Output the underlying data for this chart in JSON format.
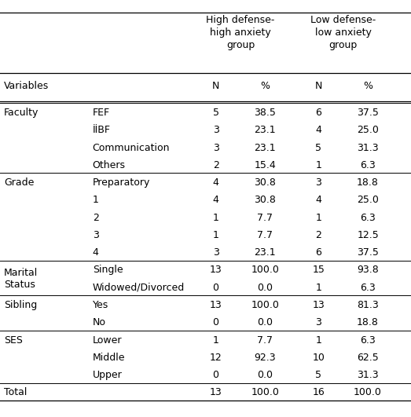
{
  "col_headers": [
    "N",
    "%",
    "N",
    "%"
  ],
  "var_header": "Variables",
  "rows": [
    {
      "var": "Faculty",
      "sub": "FEF",
      "n1": "5",
      "p1": "38.5",
      "n2": "6",
      "p2": "37.5"
    },
    {
      "var": "",
      "sub": "İİBF",
      "n1": "3",
      "p1": "23.1",
      "n2": "4",
      "p2": "25.0"
    },
    {
      "var": "",
      "sub": "Communication",
      "n1": "3",
      "p1": "23.1",
      "n2": "5",
      "p2": "31.3"
    },
    {
      "var": "",
      "sub": "Others",
      "n1": "2",
      "p1": "15.4",
      "n2": "1",
      "p2": "6.3"
    },
    {
      "var": "Grade",
      "sub": "Preparatory",
      "n1": "4",
      "p1": "30.8",
      "n2": "3",
      "p2": "18.8"
    },
    {
      "var": "",
      "sub": "1",
      "n1": "4",
      "p1": "30.8",
      "n2": "4",
      "p2": "25.0"
    },
    {
      "var": "",
      "sub": "2",
      "n1": "1",
      "p1": "7.7",
      "n2": "1",
      "p2": "6.3"
    },
    {
      "var": "",
      "sub": "3",
      "n1": "1",
      "p1": "7.7",
      "n2": "2",
      "p2": "12.5"
    },
    {
      "var": "",
      "sub": "4",
      "n1": "3",
      "p1": "23.1",
      "n2": "6",
      "p2": "37.5"
    },
    {
      "var": "Marital\nStatus",
      "sub": "Single",
      "n1": "13",
      "p1": "100.0",
      "n2": "15",
      "p2": "93.8"
    },
    {
      "var": "",
      "sub": "Widowed/Divorced",
      "n1": "0",
      "p1": "0.0",
      "n2": "1",
      "p2": "6.3"
    },
    {
      "var": "Sibling",
      "sub": "Yes",
      "n1": "13",
      "p1": "100.0",
      "n2": "13",
      "p2": "81.3"
    },
    {
      "var": "",
      "sub": "No",
      "n1": "0",
      "p1": "0.0",
      "n2": "3",
      "p2": "18.8"
    },
    {
      "var": "SES",
      "sub": "Lower",
      "n1": "1",
      "p1": "7.7",
      "n2": "1",
      "p2": "6.3"
    },
    {
      "var": "",
      "sub": "Middle",
      "n1": "12",
      "p1": "92.3",
      "n2": "10",
      "p2": "62.5"
    },
    {
      "var": "",
      "sub": "Upper",
      "n1": "0",
      "p1": "0.0",
      "n2": "5",
      "p2": "31.3"
    },
    {
      "var": "Total",
      "sub": "",
      "n1": "13",
      "p1": "100.0",
      "n2": "16",
      "p2": "100.0"
    }
  ],
  "section_first_rows": [
    0,
    4,
    9,
    11,
    13,
    16
  ],
  "bg_color": "#ffffff",
  "text_color": "#000000",
  "font_size": 9.0,
  "header_font_size": 9.0,
  "figwidth": 5.23,
  "figheight": 5.31,
  "dpi": 100
}
